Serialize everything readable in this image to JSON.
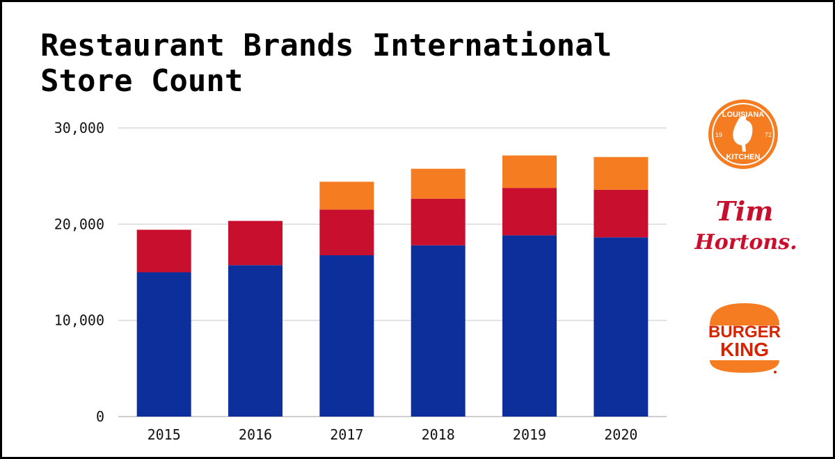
{
  "title_lines": [
    "Restaurant Brands International",
    "Store Count"
  ],
  "colors": {
    "burger_king": "#0c2f9c",
    "tim_hortons": "#c8102e",
    "popeyes": "#f57c20",
    "grid": "#d9d9d9"
  },
  "logos": {
    "popeyes": {
      "icon": "popeyes-louisiana-kitchen-logo",
      "top_text": "LOUISIANA",
      "bottom_text": "KITCHEN",
      "year_left": "19",
      "year_right": "72"
    },
    "tim_hortons": {
      "icon": "tim-hortons-logo",
      "line1": "Tim",
      "line2": "Hortons."
    },
    "burger_king": {
      "icon": "burger-king-logo",
      "line1": "BURGER",
      "line2": "KING"
    }
  },
  "chart_data": {
    "type": "bar",
    "stacked": true,
    "categories": [
      "2015",
      "2016",
      "2017",
      "2018",
      "2019",
      "2020"
    ],
    "series": [
      {
        "key": "burger_king",
        "values": [
          15000,
          15740,
          16770,
          17800,
          18840,
          18630
        ]
      },
      {
        "key": "tim_hortons",
        "values": [
          4420,
          4600,
          4750,
          4850,
          4930,
          4950
        ]
      },
      {
        "key": "popeyes",
        "values": [
          0,
          0,
          2890,
          3110,
          3370,
          3400
        ]
      }
    ],
    "y_ticks": [
      "0",
      "10,000",
      "20,000",
      "30,000"
    ],
    "y_tick_values": [
      0,
      10000,
      20000,
      30000
    ],
    "ylim": [
      0,
      30000
    ],
    "grid": true,
    "legend": "logos on right"
  }
}
